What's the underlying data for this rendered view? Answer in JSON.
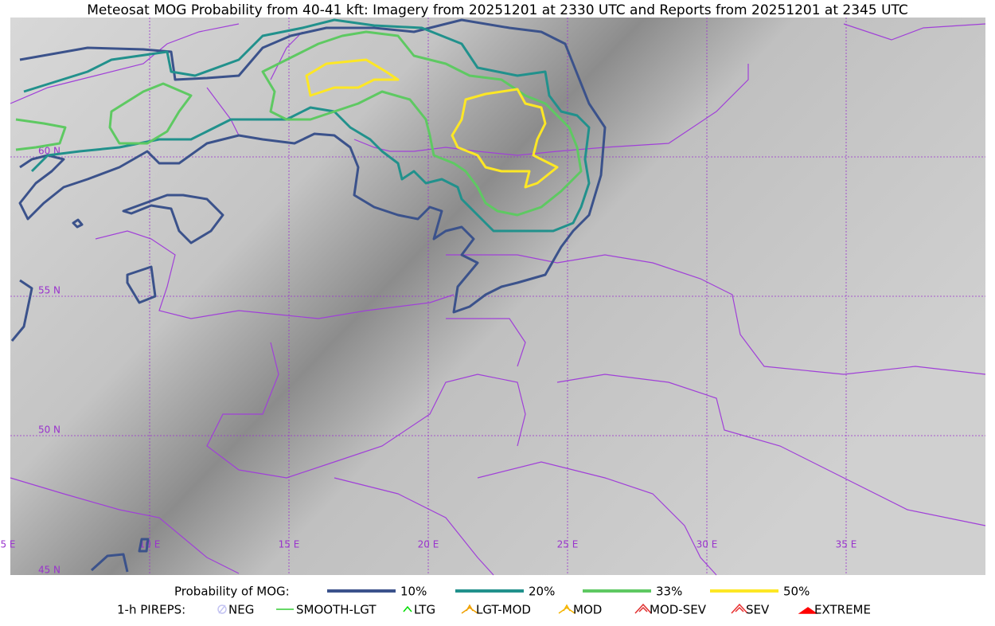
{
  "title": "Meteosat MOG Probability from 40-41 kft: Imagery from 20251201 at 2330 UTC and Reports from 20251201 at 2345 UTC",
  "map": {
    "lon_labels": [
      "5 E",
      "10 E",
      "15 E",
      "20 E",
      "25 E",
      "30 E",
      "35 E"
    ],
    "lat_labels": [
      "60 N",
      "55 N",
      "50 N",
      "45 N"
    ],
    "grid_color": "#9933cc"
  },
  "legend": {
    "title": "Probability of MOG:",
    "items": [
      {
        "label": "10%",
        "color": "#3b528b"
      },
      {
        "label": "20%",
        "color": "#21918c"
      },
      {
        "label": "33%",
        "color": "#5ec962"
      },
      {
        "label": "50%",
        "color": "#fde725"
      }
    ]
  },
  "pireps": {
    "title": "1-h PIREPS:",
    "items": [
      {
        "label": "NEG",
        "color": "#c4c4f2"
      },
      {
        "label": "SMOOTH-LGT",
        "color": "#33cc33"
      },
      {
        "label": "LTG",
        "color": "#00dd00"
      },
      {
        "label": "LGT-MOD",
        "color": "#f0a000"
      },
      {
        "label": "MOD",
        "color": "#f5b400"
      },
      {
        "label": "MOD-SEV",
        "color": "#e03030"
      },
      {
        "label": "SEV",
        "color": "#e83030"
      },
      {
        "label": "EXTREME",
        "color": "#ff0000"
      }
    ]
  }
}
